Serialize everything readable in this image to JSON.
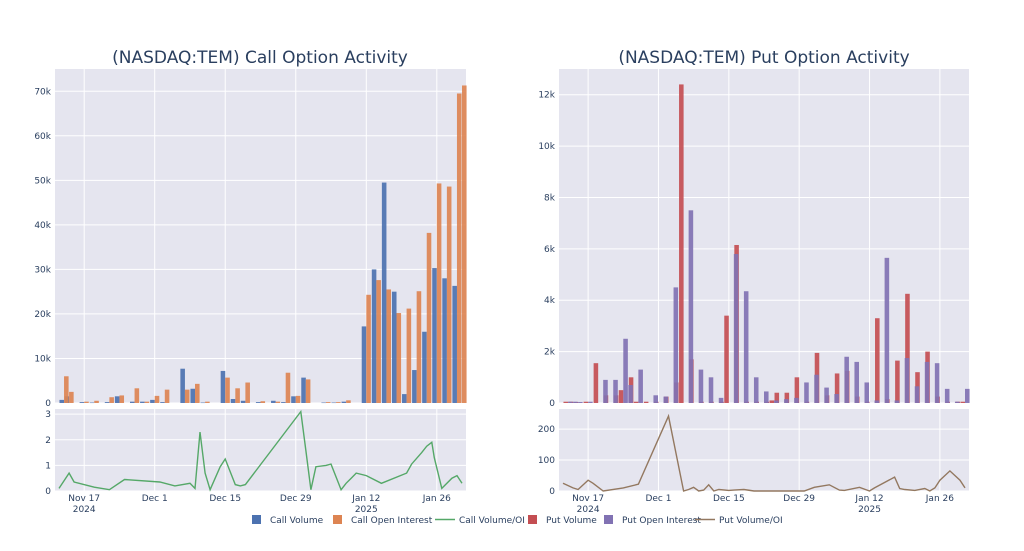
{
  "legend": [
    {
      "name": "call_volume",
      "label": "Call Volume",
      "kind": "bar",
      "color": "#4C72B0"
    },
    {
      "name": "call_oi",
      "label": "Call Open Interest",
      "kind": "bar",
      "color": "#DD8452"
    },
    {
      "name": "call_vol_oi",
      "label": "Call Volume/OI",
      "kind": "line",
      "color": "#55A868"
    },
    {
      "name": "put_volume",
      "label": "Put Volume",
      "kind": "bar",
      "color": "#C44E52"
    },
    {
      "name": "put_oi",
      "label": "Put Open Interest",
      "kind": "bar",
      "color": "#8172B3"
    },
    {
      "name": "put_vol_oi",
      "label": "Put Volume/OI",
      "kind": "line",
      "color": "#937860"
    }
  ],
  "chart_data": [
    {
      "type": "bar",
      "id": "call",
      "title": "(NASDAQ:TEM) Call Option Activity",
      "x_domain": [
        0,
        80
      ],
      "x_ticks": [
        {
          "x": 5,
          "label": "Nov 17",
          "sub": "2024"
        },
        {
          "x": 19,
          "label": "Dec 1",
          "sub": ""
        },
        {
          "x": 33,
          "label": "Dec 15",
          "sub": ""
        },
        {
          "x": 47,
          "label": "Dec 29",
          "sub": ""
        },
        {
          "x": 61,
          "label": "Jan 12",
          "sub": "2025"
        },
        {
          "x": 75,
          "label": "Jan 26",
          "sub": ""
        }
      ],
      "bars_ylim": [
        0,
        75000
      ],
      "bars_yticks": [
        0,
        10000,
        20000,
        30000,
        40000,
        50000,
        60000,
        70000
      ],
      "bars_yticklabels": [
        "0",
        "10k",
        "20k",
        "30k",
        "40k",
        "50k",
        "60k",
        "70k"
      ],
      "series": [
        {
          "name": "Call Volume",
          "color": "#4C72B0",
          "x": [
            1,
            2,
            5,
            7,
            10,
            12,
            15,
            17,
            19,
            21,
            25,
            27,
            29,
            33,
            35,
            37,
            40,
            43,
            45,
            47,
            49,
            53,
            55,
            57,
            61,
            63,
            65,
            67,
            69,
            71,
            73,
            75,
            77,
            79
          ],
          "values": [
            700,
            1500,
            200,
            100,
            200,
            1500,
            300,
            300,
            700,
            200,
            7700,
            3200,
            100,
            7200,
            900,
            500,
            200,
            500,
            200,
            1500,
            5700,
            100,
            100,
            300,
            17200,
            30000,
            49500,
            25000,
            2000,
            7400,
            16000,
            30300,
            28000,
            26300
          ]
        },
        {
          "name": "Call Open Interest",
          "color": "#DD8452",
          "x": [
            1,
            2,
            5,
            7,
            10,
            12,
            15,
            17,
            19,
            21,
            25,
            27,
            29,
            33,
            35,
            37,
            40,
            43,
            45,
            47,
            49,
            53,
            55,
            57,
            61,
            63,
            65,
            67,
            69,
            71,
            73,
            75,
            77,
            79,
            80
          ],
          "values": [
            6000,
            2500,
            300,
            500,
            1300,
            1700,
            3300,
            300,
            1600,
            3000,
            3000,
            4300,
            300,
            5700,
            3300,
            4600,
            400,
            300,
            6800,
            1600,
            5300,
            200,
            200,
            600,
            24300,
            27600,
            25500,
            20200,
            21200,
            25100,
            38200,
            49300,
            48600,
            69500,
            71300
          ]
        }
      ],
      "ratio_ylim": [
        0,
        3.2
      ],
      "ratio_yticks": [
        0,
        1,
        2,
        3
      ],
      "ratio_yticklabels": [
        "0",
        "1",
        "2",
        "3"
      ],
      "ratio": {
        "name": "Call Volume/OI",
        "color": "#55A868",
        "x": [
          0,
          2,
          3,
          7,
          10,
          13,
          20,
          23,
          26,
          27,
          28,
          29,
          30,
          32,
          33,
          35,
          36,
          37,
          48,
          49,
          50,
          51,
          53,
          54,
          56,
          57,
          58,
          59,
          61,
          64,
          69,
          70,
          72,
          73,
          74,
          74.5,
          76,
          78,
          79,
          80
        ],
        "values": [
          0.1,
          0.7,
          0.35,
          0.15,
          0.05,
          0.45,
          0.35,
          0.2,
          0.3,
          0.1,
          2.3,
          0.7,
          0.05,
          0.95,
          1.25,
          0.25,
          0.2,
          0.25,
          3.1,
          1.6,
          0.05,
          0.95,
          1.0,
          1.05,
          0.05,
          0.3,
          0.5,
          0.7,
          0.6,
          0.3,
          0.7,
          1.05,
          1.5,
          1.75,
          1.9,
          1.3,
          0.1,
          0.5,
          0.6,
          0.3
        ]
      }
    },
    {
      "type": "bar",
      "id": "put",
      "title": "(NASDAQ:TEM) Put Option Activity",
      "x_domain": [
        0,
        80
      ],
      "x_ticks": [
        {
          "x": 5,
          "label": "Nov 17",
          "sub": "2024"
        },
        {
          "x": 19,
          "label": "Dec 1",
          "sub": ""
        },
        {
          "x": 33,
          "label": "Dec 15",
          "sub": ""
        },
        {
          "x": 47,
          "label": "Dec 29",
          "sub": ""
        },
        {
          "x": 61,
          "label": "Jan 12",
          "sub": "2025"
        },
        {
          "x": 75,
          "label": "Jan 26",
          "sub": ""
        }
      ],
      "bars_ylim": [
        0,
        13000
      ],
      "bars_yticks": [
        0,
        2000,
        4000,
        6000,
        8000,
        10000,
        12000
      ],
      "bars_yticklabels": [
        "0",
        "2k",
        "4k",
        "6k",
        "8k",
        "10k",
        "12k"
      ],
      "series": [
        {
          "name": "Put Volume",
          "color": "#C44E52",
          "x": [
            1,
            2,
            3,
            5,
            7,
            9,
            11,
            12,
            14,
            15,
            17,
            19,
            21,
            23,
            24,
            26,
            28,
            30,
            32,
            33,
            35,
            37,
            39,
            41,
            42,
            43,
            45,
            47,
            49,
            51,
            53,
            55,
            57,
            59,
            61,
            63,
            65,
            67,
            69,
            71,
            73,
            75,
            77,
            79,
            80
          ],
          "values": [
            50,
            50,
            40,
            50,
            1550,
            300,
            300,
            500,
            1000,
            50,
            50,
            50,
            250,
            800,
            12400,
            1700,
            50,
            50,
            50,
            3400,
            6150,
            50,
            50,
            50,
            100,
            400,
            400,
            1000,
            50,
            1950,
            300,
            1150,
            1250,
            250,
            50,
            3300,
            150,
            1650,
            4250,
            1200,
            2000,
            250,
            50,
            50,
            50
          ]
        },
        {
          "name": "Put Open Interest",
          "color": "#8172B3",
          "x": [
            1,
            2,
            3,
            5,
            8,
            10,
            12,
            13,
            15,
            18,
            20,
            22,
            25,
            27,
            29,
            31,
            34,
            36,
            38,
            40,
            42,
            44,
            46,
            48,
            50,
            52,
            54,
            56,
            58,
            60,
            62,
            64,
            66,
            68,
            70,
            72,
            74,
            76,
            78,
            80
          ],
          "values": [
            50,
            50,
            40,
            50,
            900,
            900,
            2500,
            700,
            1300,
            300,
            250,
            4500,
            7500,
            1300,
            1000,
            200,
            5800,
            4350,
            1000,
            450,
            100,
            150,
            200,
            800,
            1100,
            600,
            350,
            1800,
            1600,
            800,
            100,
            5650,
            100,
            1750,
            650,
            1600,
            1550,
            550,
            50,
            550
          ]
        }
      ],
      "ratio_ylim": [
        0,
        265
      ],
      "ratio_yticks": [
        0,
        100,
        200
      ],
      "ratio_yticklabels": [
        "0",
        "100",
        "200"
      ],
      "ratio": {
        "name": "Put Volume/OI",
        "color": "#937860",
        "x": [
          0,
          2,
          3,
          5,
          6,
          8,
          12,
          15,
          21,
          24,
          25,
          26,
          27,
          28,
          29,
          30,
          31,
          33,
          34,
          36,
          38,
          48,
          50,
          53,
          55,
          56,
          59,
          61,
          62,
          66,
          67,
          68,
          70,
          72,
          73,
          74,
          75,
          77,
          79,
          80
        ],
        "values": [
          25,
          10,
          5,
          35,
          25,
          0,
          10,
          22,
          242,
          0,
          5,
          12,
          0,
          3,
          20,
          0,
          5,
          2,
          3,
          5,
          0,
          0,
          12,
          20,
          3,
          2,
          12,
          0,
          10,
          45,
          8,
          5,
          2,
          8,
          0,
          10,
          35,
          65,
          35,
          10
        ]
      }
    }
  ]
}
